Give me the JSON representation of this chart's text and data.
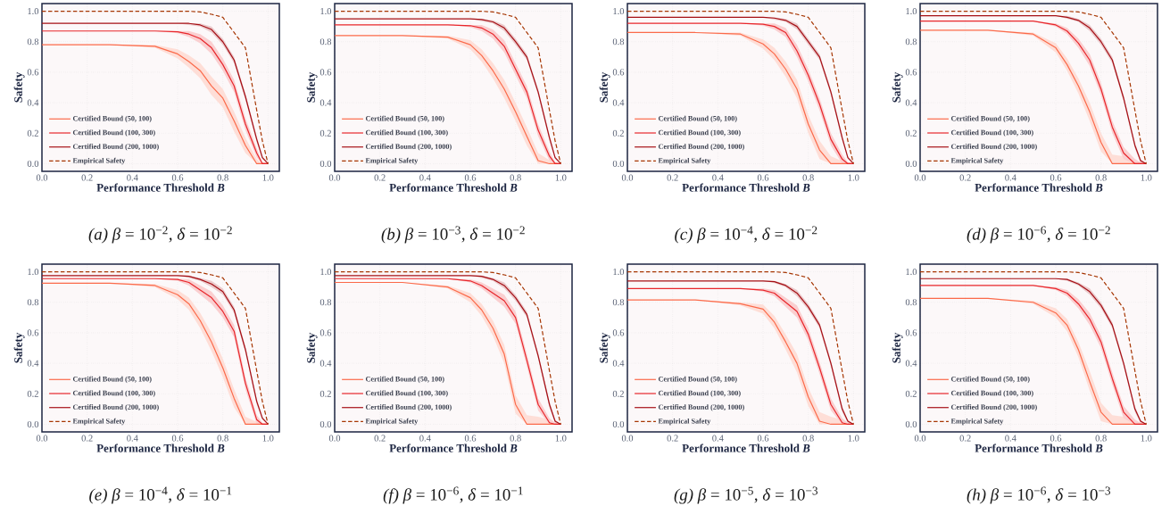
{
  "chart_data": [
    {
      "type": "line",
      "title": "*(a) β* = 10$^{−2}$, *δ* = 10$^{−2}$",
      "xlabel": "Performance Threshold *B*",
      "ylabel": "Safety",
      "grid": true,
      "legend": "bottom left",
      "xlim": [
        0,
        1.05
      ],
      "ylim": [
        -0.05,
        1.05
      ],
      "xticks": [
        {
          "value": 0,
          "label": "0.0"
        },
        {
          "value": 0.2,
          "label": "0.2"
        },
        {
          "value": 0.4,
          "label": "0.4"
        },
        {
          "value": 0.6,
          "label": "0.6"
        },
        {
          "value": 0.8,
          "label": "0.8"
        },
        {
          "value": 1,
          "label": "1.0"
        }
      ],
      "yticks": [
        {
          "value": 0,
          "label": "0.0"
        },
        {
          "value": 0.2,
          "label": "0.2"
        },
        {
          "value": 0.4,
          "label": "0.4"
        },
        {
          "value": 0.6,
          "label": "0.6"
        },
        {
          "value": 0.8,
          "label": "0.8"
        },
        {
          "value": 1,
          "label": "1.0"
        }
      ],
      "x": [
        0,
        0.3,
        0.5,
        0.6,
        0.65,
        0.7,
        0.75,
        0.8,
        0.85,
        0.9,
        0.95,
        0.975,
        1.0
      ],
      "series": [
        {
          "name": "Certified Bound (50, 100)",
          "color": "#fb6a4a",
          "line_style": "solid",
          "values": [
            0.78,
            0.78,
            0.77,
            0.72,
            0.67,
            0.61,
            0.51,
            0.43,
            0.28,
            0.12,
            0,
            0,
            0
          ],
          "lower": [
            0.78,
            0.78,
            0.76,
            0.69,
            0.63,
            0.56,
            0.45,
            0.37,
            0.21,
            0.07,
            0,
            0,
            0
          ],
          "upper": [
            0.78,
            0.78,
            0.78,
            0.75,
            0.71,
            0.66,
            0.57,
            0.49,
            0.34,
            0.17,
            0.03,
            0,
            0
          ]
        },
        {
          "name": "Certified Bound (100, 300)",
          "color": "#e8262b",
          "line_style": "solid",
          "values": [
            0.87,
            0.87,
            0.87,
            0.865,
            0.85,
            0.82,
            0.76,
            0.65,
            0.51,
            0.26,
            0.07,
            0,
            0
          ],
          "lower": [
            0.87,
            0.87,
            0.87,
            0.855,
            0.83,
            0.79,
            0.72,
            0.61,
            0.47,
            0.22,
            0.04,
            0,
            0
          ],
          "upper": [
            0.87,
            0.87,
            0.87,
            0.87,
            0.87,
            0.85,
            0.8,
            0.69,
            0.55,
            0.3,
            0.1,
            0.01,
            0
          ]
        },
        {
          "name": "Certified Bound (200, 1000)",
          "color": "#a50f15",
          "line_style": "solid",
          "values": [
            0.92,
            0.92,
            0.92,
            0.92,
            0.92,
            0.91,
            0.88,
            0.8,
            0.68,
            0.44,
            0.16,
            0.04,
            0
          ],
          "lower": [
            0.92,
            0.92,
            0.92,
            0.92,
            0.91,
            0.9,
            0.86,
            0.78,
            0.66,
            0.42,
            0.14,
            0.03,
            0
          ],
          "upper": [
            0.92,
            0.92,
            0.92,
            0.92,
            0.92,
            0.92,
            0.9,
            0.82,
            0.7,
            0.46,
            0.18,
            0.05,
            0
          ]
        },
        {
          "name": "Empirical Safety",
          "color": "#a63603",
          "line_style": "dashed",
          "values": [
            1,
            1,
            1,
            1,
            1,
            0.995,
            0.98,
            0.96,
            0.86,
            0.76,
            0.35,
            0.15,
            0
          ]
        }
      ]
    },
    {
      "type": "line",
      "title": "*(b) β* = 10$^{−3}$, *δ* = 10$^{−2}$",
      "xlabel": "Performance Threshold *B*",
      "ylabel": "Safety",
      "grid": true,
      "legend": "bottom left",
      "xlim": [
        0,
        1.05
      ],
      "ylim": [
        -0.05,
        1.05
      ],
      "xticks": [
        {
          "value": 0,
          "label": "0.0"
        },
        {
          "value": 0.2,
          "label": "0.2"
        },
        {
          "value": 0.4,
          "label": "0.4"
        },
        {
          "value": 0.6,
          "label": "0.6"
        },
        {
          "value": 0.8,
          "label": "0.8"
        },
        {
          "value": 1,
          "label": "1.0"
        }
      ],
      "yticks": [
        {
          "value": 0,
          "label": "0.0"
        },
        {
          "value": 0.2,
          "label": "0.2"
        },
        {
          "value": 0.4,
          "label": "0.4"
        },
        {
          "value": 0.6,
          "label": "0.6"
        },
        {
          "value": 0.8,
          "label": "0.8"
        },
        {
          "value": 1,
          "label": "1.0"
        }
      ],
      "x": [
        0,
        0.3,
        0.5,
        0.6,
        0.65,
        0.7,
        0.75,
        0.8,
        0.85,
        0.9,
        0.95,
        0.975,
        1.0
      ],
      "series": [
        {
          "name": "Certified Bound (50, 100)",
          "color": "#fb6a4a",
          "line_style": "solid",
          "values": [
            0.84,
            0.84,
            0.83,
            0.78,
            0.71,
            0.61,
            0.49,
            0.34,
            0.18,
            0.02,
            0,
            0,
            0
          ],
          "lower": [
            0.84,
            0.84,
            0.82,
            0.75,
            0.67,
            0.56,
            0.43,
            0.28,
            0.12,
            0,
            null,
            0,
            0
          ],
          "upper": [
            0.84,
            0.84,
            0.84,
            0.81,
            0.75,
            0.66,
            0.55,
            0.4,
            0.24,
            0.07,
            null,
            0,
            0
          ]
        },
        {
          "name": "Certified Bound (100, 300)",
          "color": "#e8262b",
          "line_style": "solid",
          "values": [
            0.91,
            0.91,
            0.91,
            0.905,
            0.89,
            0.85,
            0.77,
            0.62,
            0.47,
            0.22,
            0.05,
            0,
            0
          ],
          "lower": [
            0.91,
            0.91,
            0.91,
            0.895,
            0.87,
            0.82,
            0.73,
            0.58,
            0.43,
            0.18,
            0.02,
            0,
            0
          ],
          "upper": [
            0.91,
            0.91,
            0.91,
            0.91,
            0.91,
            0.88,
            0.81,
            0.66,
            0.51,
            0.26,
            0.08,
            0.01,
            0
          ]
        },
        {
          "name": "Certified Bound (200, 1000)",
          "color": "#a50f15",
          "line_style": "solid",
          "values": [
            0.95,
            0.95,
            0.95,
            0.95,
            0.945,
            0.93,
            0.89,
            0.8,
            0.7,
            0.47,
            0.17,
            0.04,
            0
          ],
          "lower": [
            0.95,
            0.95,
            0.95,
            0.95,
            0.935,
            0.92,
            0.87,
            0.78,
            0.68,
            0.45,
            0.15,
            0.03,
            0
          ],
          "upper": [
            0.95,
            0.95,
            0.95,
            0.95,
            0.95,
            0.94,
            0.91,
            0.82,
            0.72,
            0.49,
            0.19,
            0.05,
            0
          ]
        },
        {
          "name": "Empirical Safety",
          "color": "#a63603",
          "line_style": "dashed",
          "values": [
            1,
            1,
            1,
            1,
            1,
            0.995,
            0.98,
            0.96,
            0.86,
            0.76,
            0.35,
            0.15,
            0
          ]
        }
      ]
    },
    {
      "type": "line",
      "title": "*(c) β* = 10$^{−4}$, *δ* = 10$^{−2}$",
      "xlabel": "Performance Threshold *B*",
      "ylabel": "Safety",
      "grid": true,
      "legend": "bottom left",
      "xlim": [
        0,
        1.05
      ],
      "ylim": [
        -0.05,
        1.05
      ],
      "xticks": [
        {
          "value": 0,
          "label": "0.0"
        },
        {
          "value": 0.2,
          "label": "0.2"
        },
        {
          "value": 0.4,
          "label": "0.4"
        },
        {
          "value": 0.6,
          "label": "0.6"
        },
        {
          "value": 0.8,
          "label": "0.8"
        },
        {
          "value": 1,
          "label": "1.0"
        }
      ],
      "yticks": [
        {
          "value": 0,
          "label": "0.0"
        },
        {
          "value": 0.2,
          "label": "0.2"
        },
        {
          "value": 0.4,
          "label": "0.4"
        },
        {
          "value": 0.6,
          "label": "0.6"
        },
        {
          "value": 0.8,
          "label": "0.8"
        },
        {
          "value": 1,
          "label": "1.0"
        }
      ],
      "x": [
        0,
        0.3,
        0.5,
        0.6,
        0.65,
        0.7,
        0.75,
        0.8,
        0.85,
        0.9,
        0.95,
        0.975,
        1.0
      ],
      "series": [
        {
          "name": "Certified Bound (50, 100)",
          "color": "#fb6a4a",
          "line_style": "solid",
          "values": [
            0.86,
            0.86,
            0.85,
            0.785,
            0.72,
            0.62,
            0.49,
            0.26,
            0.09,
            0,
            0,
            0,
            0
          ],
          "lower": [
            0.86,
            0.86,
            0.84,
            0.755,
            0.68,
            0.57,
            0.43,
            0.2,
            0.03,
            0,
            null,
            0,
            0
          ],
          "upper": [
            0.86,
            0.86,
            0.86,
            0.815,
            0.76,
            0.67,
            0.55,
            0.32,
            0.15,
            0.05,
            null,
            0,
            0
          ]
        },
        {
          "name": "Certified Bound (100, 300)",
          "color": "#e8262b",
          "line_style": "solid",
          "values": [
            0.92,
            0.92,
            0.92,
            0.915,
            0.9,
            0.86,
            0.74,
            0.58,
            0.39,
            0.16,
            0.03,
            0,
            0
          ],
          "lower": [
            0.92,
            0.92,
            0.92,
            0.905,
            0.88,
            0.83,
            0.7,
            0.54,
            0.35,
            0.12,
            0,
            0,
            0
          ],
          "upper": [
            0.92,
            0.92,
            0.92,
            0.92,
            0.92,
            0.89,
            0.78,
            0.62,
            0.43,
            0.2,
            0.06,
            0.01,
            0
          ]
        },
        {
          "name": "Certified Bound (200, 1000)",
          "color": "#a50f15",
          "line_style": "solid",
          "values": [
            0.96,
            0.96,
            0.96,
            0.96,
            0.955,
            0.94,
            0.9,
            0.8,
            0.7,
            0.47,
            0.17,
            0.04,
            0
          ],
          "lower": [
            0.96,
            0.96,
            0.96,
            0.96,
            0.945,
            0.93,
            0.88,
            0.78,
            0.68,
            0.45,
            0.15,
            0.03,
            0
          ],
          "upper": [
            0.96,
            0.96,
            0.96,
            0.96,
            0.96,
            0.95,
            0.92,
            0.82,
            0.72,
            0.49,
            0.19,
            0.05,
            0
          ]
        },
        {
          "name": "Empirical Safety",
          "color": "#a63603",
          "line_style": "dashed",
          "values": [
            1,
            1,
            1,
            1,
            1,
            0.995,
            0.98,
            0.96,
            0.86,
            0.76,
            0.35,
            0.15,
            0
          ]
        }
      ]
    },
    {
      "type": "line",
      "title": "*(d) β* = 10$^{−6}$, *δ* = 10$^{−2}$",
      "xlabel": "Performance Threshold *B*",
      "ylabel": "Safety",
      "grid": true,
      "legend": "bottom left",
      "xlim": [
        0,
        1.05
      ],
      "ylim": [
        -0.05,
        1.05
      ],
      "xticks": [
        {
          "value": 0,
          "label": "0.0"
        },
        {
          "value": 0.2,
          "label": "0.2"
        },
        {
          "value": 0.4,
          "label": "0.4"
        },
        {
          "value": 0.6,
          "label": "0.6"
        },
        {
          "value": 0.8,
          "label": "0.8"
        },
        {
          "value": 1,
          "label": "1.0"
        }
      ],
      "yticks": [
        {
          "value": 0,
          "label": "0.0"
        },
        {
          "value": 0.2,
          "label": "0.2"
        },
        {
          "value": 0.4,
          "label": "0.4"
        },
        {
          "value": 0.6,
          "label": "0.6"
        },
        {
          "value": 0.8,
          "label": "0.8"
        },
        {
          "value": 1,
          "label": "1.0"
        }
      ],
      "x": [
        0,
        0.3,
        0.5,
        0.6,
        0.65,
        0.7,
        0.75,
        0.8,
        0.85,
        0.9,
        0.95,
        0.975,
        1.0
      ],
      "series": [
        {
          "name": "Certified Bound (50, 100)",
          "color": "#fb6a4a",
          "line_style": "solid",
          "values": [
            0.875,
            0.875,
            0.85,
            0.76,
            0.65,
            0.51,
            0.34,
            0.14,
            0,
            0,
            0,
            0,
            0
          ],
          "lower": [
            0.875,
            0.875,
            0.84,
            0.73,
            0.61,
            0.46,
            0.28,
            0.08,
            0,
            0,
            0,
            0,
            0
          ],
          "upper": [
            0.875,
            0.875,
            0.86,
            0.79,
            0.69,
            0.56,
            0.4,
            0.2,
            0.06,
            0.05,
            0.03,
            0,
            0
          ]
        },
        {
          "name": "Certified Bound (100, 300)",
          "color": "#e8262b",
          "line_style": "solid",
          "values": [
            0.935,
            0.935,
            0.935,
            0.91,
            0.87,
            0.79,
            0.68,
            0.49,
            0.24,
            0.07,
            0,
            0,
            0
          ],
          "lower": [
            0.935,
            0.935,
            0.935,
            0.9,
            0.85,
            0.76,
            0.64,
            0.45,
            0.2,
            0.03,
            0,
            0,
            0
          ],
          "upper": [
            0.935,
            0.935,
            0.935,
            0.92,
            0.89,
            0.82,
            0.72,
            0.53,
            0.28,
            0.11,
            0.03,
            0.01,
            0
          ]
        },
        {
          "name": "Certified Bound (200, 1000)",
          "color": "#a50f15",
          "line_style": "solid",
          "values": [
            0.97,
            0.97,
            0.97,
            0.97,
            0.96,
            0.94,
            0.89,
            0.8,
            0.68,
            0.43,
            0.12,
            0.02,
            0
          ],
          "lower": [
            0.97,
            0.97,
            0.97,
            0.97,
            0.95,
            0.93,
            0.87,
            0.78,
            0.66,
            0.41,
            0.1,
            0.01,
            0
          ],
          "upper": [
            0.97,
            0.97,
            0.97,
            0.97,
            0.97,
            0.95,
            0.91,
            0.82,
            0.7,
            0.45,
            0.14,
            0.03,
            0
          ]
        },
        {
          "name": "Empirical Safety",
          "color": "#a63603",
          "line_style": "dashed",
          "values": [
            1,
            1,
            1,
            1,
            1,
            0.995,
            0.98,
            0.96,
            0.86,
            0.76,
            0.35,
            0.15,
            0
          ]
        }
      ]
    },
    {
      "type": "line",
      "title": "*(e) β* = 10$^{−4}$, *δ* = 10$^{−1}$",
      "xlabel": "Performance Threshold *B*",
      "ylabel": "Safety",
      "grid": true,
      "legend": "bottom left",
      "xlim": [
        0,
        1.05
      ],
      "ylim": [
        -0.05,
        1.05
      ],
      "xticks": [
        {
          "value": 0,
          "label": "0.0"
        },
        {
          "value": 0.2,
          "label": "0.2"
        },
        {
          "value": 0.4,
          "label": "0.4"
        },
        {
          "value": 0.6,
          "label": "0.6"
        },
        {
          "value": 0.8,
          "label": "0.8"
        },
        {
          "value": 1,
          "label": "1.0"
        }
      ],
      "yticks": [
        {
          "value": 0,
          "label": "0.0"
        },
        {
          "value": 0.2,
          "label": "0.2"
        },
        {
          "value": 0.4,
          "label": "0.4"
        },
        {
          "value": 0.6,
          "label": "0.6"
        },
        {
          "value": 0.8,
          "label": "0.8"
        },
        {
          "value": 1,
          "label": "1.0"
        }
      ],
      "x": [
        0,
        0.3,
        0.5,
        0.6,
        0.65,
        0.7,
        0.75,
        0.8,
        0.85,
        0.9,
        0.95,
        0.975,
        1.0
      ],
      "series": [
        {
          "name": "Certified Bound (50, 100)",
          "color": "#fb6a4a",
          "line_style": "solid",
          "values": [
            0.925,
            0.925,
            0.91,
            0.85,
            0.79,
            0.68,
            0.54,
            0.37,
            0.17,
            0,
            0,
            0,
            0
          ],
          "lower": [
            0.925,
            0.925,
            0.9,
            0.82,
            0.75,
            0.63,
            0.48,
            0.31,
            0.11,
            0,
            null,
            0,
            0
          ],
          "upper": [
            0.925,
            0.925,
            0.92,
            0.88,
            0.83,
            0.73,
            0.6,
            0.43,
            0.23,
            0.05,
            null,
            0,
            0
          ]
        },
        {
          "name": "Certified Bound (100, 300)",
          "color": "#e8262b",
          "line_style": "solid",
          "values": [
            0.955,
            0.955,
            0.955,
            0.95,
            0.93,
            0.88,
            0.83,
            0.74,
            0.61,
            0.27,
            0.03,
            0,
            0
          ],
          "lower": [
            0.955,
            0.955,
            0.955,
            0.94,
            0.91,
            0.85,
            0.79,
            0.7,
            0.57,
            0.23,
            0,
            0,
            0
          ],
          "upper": [
            0.955,
            0.955,
            0.955,
            0.955,
            0.95,
            0.91,
            0.87,
            0.78,
            0.65,
            0.31,
            0.06,
            0.01,
            0
          ]
        },
        {
          "name": "Certified Bound (200, 1000)",
          "color": "#a50f15",
          "line_style": "solid",
          "values": [
            0.975,
            0.975,
            0.975,
            0.975,
            0.97,
            0.95,
            0.92,
            0.87,
            0.75,
            0.49,
            0.15,
            0.04,
            0
          ],
          "lower": [
            0.975,
            0.975,
            0.975,
            0.975,
            0.96,
            0.94,
            0.9,
            0.85,
            0.73,
            0.47,
            0.13,
            0.03,
            0
          ],
          "upper": [
            0.975,
            0.975,
            0.975,
            0.975,
            0.975,
            0.96,
            0.94,
            0.89,
            0.77,
            0.51,
            0.17,
            0.05,
            0
          ]
        },
        {
          "name": "Empirical Safety",
          "color": "#a63603",
          "line_style": "dashed",
          "values": [
            1,
            1,
            1,
            1,
            1,
            0.995,
            0.98,
            0.96,
            0.86,
            0.76,
            0.35,
            0.15,
            0
          ]
        }
      ]
    },
    {
      "type": "line",
      "title": "*(f) β* = 10$^{−6}$, *δ* = 10$^{−1}$",
      "xlabel": "Performance Threshold *B*",
      "ylabel": "Safety",
      "grid": true,
      "legend": "bottom left",
      "xlim": [
        0,
        1.05
      ],
      "ylim": [
        -0.05,
        1.05
      ],
      "xticks": [
        {
          "value": 0,
          "label": "0.0"
        },
        {
          "value": 0.2,
          "label": "0.2"
        },
        {
          "value": 0.4,
          "label": "0.4"
        },
        {
          "value": 0.6,
          "label": "0.6"
        },
        {
          "value": 0.8,
          "label": "0.8"
        },
        {
          "value": 1,
          "label": "1.0"
        }
      ],
      "yticks": [
        {
          "value": 0,
          "label": "0.0"
        },
        {
          "value": 0.2,
          "label": "0.2"
        },
        {
          "value": 0.4,
          "label": "0.4"
        },
        {
          "value": 0.6,
          "label": "0.6"
        },
        {
          "value": 0.8,
          "label": "0.8"
        },
        {
          "value": 1,
          "label": "1.0"
        }
      ],
      "x": [
        0,
        0.3,
        0.5,
        0.6,
        0.65,
        0.7,
        0.75,
        0.8,
        0.85,
        0.9,
        0.95,
        0.975,
        1.0
      ],
      "series": [
        {
          "name": "Certified Bound (50, 100)",
          "color": "#fb6a4a",
          "line_style": "solid",
          "values": [
            0.93,
            0.93,
            0.9,
            0.83,
            0.75,
            0.63,
            0.46,
            0.13,
            0,
            0,
            0,
            0,
            0
          ],
          "lower": [
            0.93,
            0.93,
            0.89,
            0.8,
            0.71,
            0.58,
            0.4,
            0.07,
            0,
            0,
            0,
            0,
            0
          ],
          "upper": [
            0.93,
            0.93,
            0.91,
            0.86,
            0.79,
            0.68,
            0.52,
            0.19,
            0.06,
            0.05,
            0.03,
            0,
            0
          ]
        },
        {
          "name": "Certified Bound (100, 300)",
          "color": "#e8262b",
          "line_style": "solid",
          "values": [
            0.955,
            0.955,
            0.955,
            0.94,
            0.91,
            0.86,
            0.81,
            0.7,
            0.42,
            0.13,
            0.01,
            0,
            0
          ],
          "lower": [
            0.955,
            0.955,
            0.955,
            0.93,
            0.89,
            0.83,
            0.77,
            0.66,
            0.38,
            0.09,
            0,
            0,
            0
          ],
          "upper": [
            0.955,
            0.955,
            0.955,
            0.95,
            0.93,
            0.89,
            0.85,
            0.74,
            0.46,
            0.17,
            0.04,
            0.01,
            0
          ]
        },
        {
          "name": "Certified Bound (200, 1000)",
          "color": "#a50f15",
          "line_style": "solid",
          "values": [
            0.975,
            0.975,
            0.975,
            0.975,
            0.97,
            0.95,
            0.91,
            0.83,
            0.72,
            0.45,
            0.13,
            0.02,
            0
          ],
          "lower": [
            0.975,
            0.975,
            0.975,
            0.975,
            0.96,
            0.94,
            0.89,
            0.81,
            0.7,
            0.43,
            0.11,
            0.01,
            0
          ],
          "upper": [
            0.975,
            0.975,
            0.975,
            0.975,
            0.975,
            0.96,
            0.93,
            0.85,
            0.74,
            0.47,
            0.15,
            0.03,
            0
          ]
        },
        {
          "name": "Empirical Safety",
          "color": "#a63603",
          "line_style": "dashed",
          "values": [
            1,
            1,
            1,
            1,
            1,
            0.995,
            0.98,
            0.96,
            0.86,
            0.76,
            0.35,
            0.15,
            0
          ]
        }
      ]
    },
    {
      "type": "line",
      "title": "*(g) β* = 10$^{−5}$, *δ* = 10$^{−3}$",
      "xlabel": "Performance Threshold *B*",
      "ylabel": "Safety",
      "grid": true,
      "legend": "bottom left",
      "xlim": [
        0,
        1.05
      ],
      "ylim": [
        -0.05,
        1.05
      ],
      "xticks": [
        {
          "value": 0,
          "label": "0.0"
        },
        {
          "value": 0.2,
          "label": "0.2"
        },
        {
          "value": 0.4,
          "label": "0.4"
        },
        {
          "value": 0.6,
          "label": "0.6"
        },
        {
          "value": 0.8,
          "label": "0.8"
        },
        {
          "value": 1,
          "label": "1.0"
        }
      ],
      "yticks": [
        {
          "value": 0,
          "label": "0.0"
        },
        {
          "value": 0.2,
          "label": "0.2"
        },
        {
          "value": 0.4,
          "label": "0.4"
        },
        {
          "value": 0.6,
          "label": "0.6"
        },
        {
          "value": 0.8,
          "label": "0.8"
        },
        {
          "value": 1,
          "label": "1.0"
        }
      ],
      "x": [
        0,
        0.3,
        0.5,
        0.6,
        0.65,
        0.7,
        0.75,
        0.8,
        0.85,
        0.9,
        0.95,
        0.975,
        1.0
      ],
      "series": [
        {
          "name": "Certified Bound (50, 100)",
          "color": "#fb6a4a",
          "line_style": "solid",
          "values": [
            0.815,
            0.815,
            0.79,
            0.755,
            0.67,
            0.54,
            0.4,
            0.18,
            0.02,
            0,
            0,
            0,
            0
          ],
          "lower": [
            0.815,
            0.815,
            0.78,
            0.725,
            0.63,
            0.49,
            0.34,
            0.12,
            0,
            0,
            0,
            0,
            0
          ],
          "upper": [
            0.815,
            0.815,
            0.8,
            0.785,
            0.71,
            0.59,
            0.46,
            0.24,
            0.08,
            0.05,
            0.03,
            0,
            0
          ]
        },
        {
          "name": "Certified Bound (100, 300)",
          "color": "#e8262b",
          "line_style": "solid",
          "values": [
            0.89,
            0.89,
            0.89,
            0.88,
            0.86,
            0.8,
            0.74,
            0.59,
            0.37,
            0.13,
            0.01,
            0,
            0
          ],
          "lower": [
            0.89,
            0.89,
            0.89,
            0.87,
            0.84,
            0.77,
            0.7,
            0.55,
            0.33,
            0.09,
            0,
            0,
            0
          ],
          "upper": [
            0.89,
            0.89,
            0.89,
            0.89,
            0.88,
            0.83,
            0.78,
            0.63,
            0.41,
            0.17,
            0.04,
            0.01,
            0
          ]
        },
        {
          "name": "Certified Bound (200, 1000)",
          "color": "#a50f15",
          "line_style": "solid",
          "values": [
            0.94,
            0.94,
            0.94,
            0.94,
            0.935,
            0.91,
            0.86,
            0.77,
            0.65,
            0.4,
            0.1,
            0.02,
            0
          ],
          "lower": [
            0.94,
            0.94,
            0.94,
            0.94,
            0.925,
            0.9,
            0.84,
            0.75,
            0.63,
            0.38,
            0.08,
            0.01,
            0
          ],
          "upper": [
            0.94,
            0.94,
            0.94,
            0.94,
            0.94,
            0.92,
            0.88,
            0.79,
            0.67,
            0.42,
            0.12,
            0.03,
            0
          ]
        },
        {
          "name": "Empirical Safety",
          "color": "#a63603",
          "line_style": "dashed",
          "values": [
            1,
            1,
            1,
            1,
            1,
            0.995,
            0.98,
            0.96,
            0.86,
            0.76,
            0.35,
            0.15,
            0
          ]
        }
      ]
    },
    {
      "type": "line",
      "title": "*(h) β* = 10$^{−6}$, *δ* = 10$^{−3}$",
      "xlabel": "Performance Threshold *B*",
      "ylabel": "Safety",
      "grid": true,
      "legend": "bottom left",
      "xlim": [
        0,
        1.05
      ],
      "ylim": [
        -0.05,
        1.05
      ],
      "xticks": [
        {
          "value": 0,
          "label": "0.0"
        },
        {
          "value": 0.2,
          "label": "0.2"
        },
        {
          "value": 0.4,
          "label": "0.4"
        },
        {
          "value": 0.6,
          "label": "0.6"
        },
        {
          "value": 0.8,
          "label": "0.8"
        },
        {
          "value": 1,
          "label": "1.0"
        }
      ],
      "yticks": [
        {
          "value": 0,
          "label": "0.0"
        },
        {
          "value": 0.2,
          "label": "0.2"
        },
        {
          "value": 0.4,
          "label": "0.4"
        },
        {
          "value": 0.6,
          "label": "0.6"
        },
        {
          "value": 0.8,
          "label": "0.8"
        },
        {
          "value": 1,
          "label": "1.0"
        }
      ],
      "x": [
        0,
        0.3,
        0.5,
        0.6,
        0.65,
        0.7,
        0.75,
        0.8,
        0.85,
        0.9,
        0.95,
        0.975,
        1.0
      ],
      "series": [
        {
          "name": "Certified Bound (50, 100)",
          "color": "#fb6a4a",
          "line_style": "solid",
          "values": [
            0.825,
            0.825,
            0.8,
            0.73,
            0.65,
            0.49,
            0.28,
            0.08,
            0,
            0,
            0,
            0,
            0
          ],
          "lower": [
            0.825,
            0.825,
            0.79,
            0.7,
            0.61,
            0.44,
            0.22,
            0.02,
            0,
            0,
            0,
            0,
            0
          ],
          "upper": [
            0.825,
            0.825,
            0.81,
            0.76,
            0.69,
            0.54,
            0.35,
            0.14,
            0.06,
            0.05,
            0.03,
            0,
            0
          ]
        },
        {
          "name": "Certified Bound (100, 300)",
          "color": "#e8262b",
          "line_style": "solid",
          "values": [
            0.91,
            0.91,
            0.91,
            0.89,
            0.86,
            0.79,
            0.69,
            0.54,
            0.3,
            0.08,
            0,
            0,
            0
          ],
          "lower": [
            0.91,
            0.91,
            0.91,
            0.88,
            0.84,
            0.76,
            0.65,
            0.5,
            0.26,
            0.04,
            0,
            0,
            0
          ],
          "upper": [
            0.91,
            0.91,
            0.91,
            0.9,
            0.88,
            0.82,
            0.73,
            0.58,
            0.34,
            0.12,
            0.03,
            0.01,
            0
          ]
        },
        {
          "name": "Certified Bound (200, 1000)",
          "color": "#a50f15",
          "line_style": "solid",
          "values": [
            0.955,
            0.955,
            0.955,
            0.955,
            0.95,
            0.92,
            0.87,
            0.78,
            0.65,
            0.4,
            0.1,
            0.02,
            0
          ],
          "lower": [
            0.955,
            0.955,
            0.955,
            0.955,
            0.94,
            0.91,
            0.85,
            0.76,
            0.63,
            0.38,
            0.08,
            0.01,
            0
          ],
          "upper": [
            0.955,
            0.955,
            0.955,
            0.955,
            0.955,
            0.93,
            0.89,
            0.8,
            0.67,
            0.42,
            0.12,
            0.03,
            0
          ]
        },
        {
          "name": "Empirical Safety",
          "color": "#a63603",
          "line_style": "dashed",
          "values": [
            1,
            1,
            1,
            1,
            1,
            0.995,
            0.98,
            0.96,
            0.86,
            0.76,
            0.35,
            0.15,
            0
          ]
        }
      ]
    }
  ]
}
